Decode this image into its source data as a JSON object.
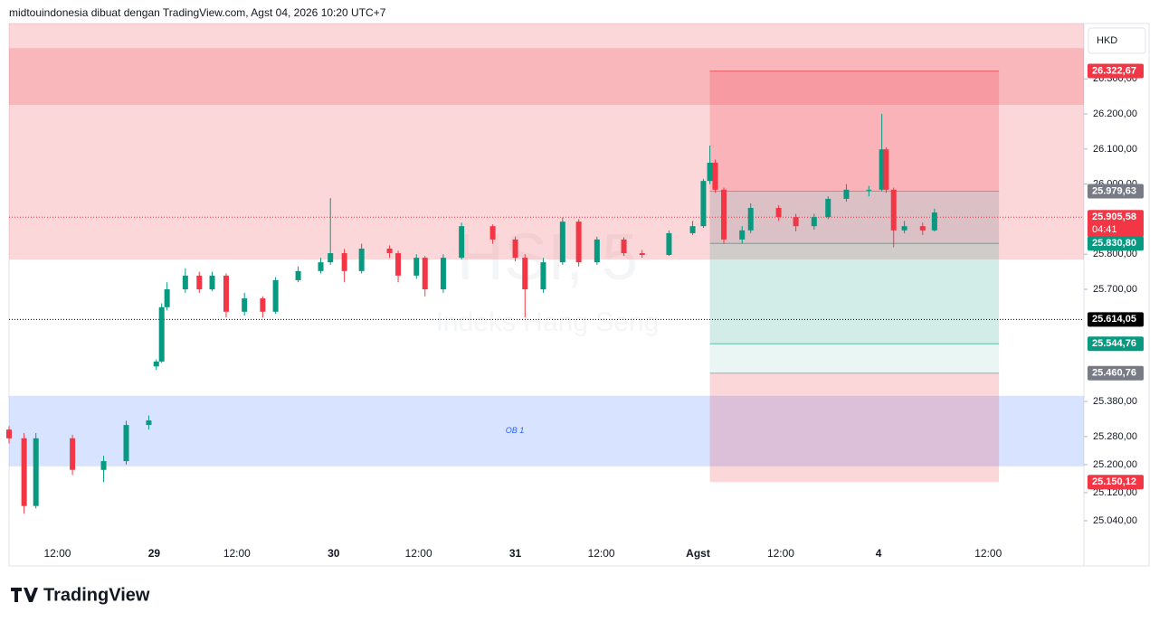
{
  "header": "midtouindonesia dibuat dengan TradingView.com, Agst 04, 2026 10:20 UTC+7",
  "footer": "TradingView",
  "chart_data": {
    "type": "candlestick",
    "currency": "HKD",
    "watermark": "HSI, 5",
    "watermark_subtitle": "Indeks Hang Seng",
    "up_color": "#089981",
    "down_color": "#f23645",
    "ylim": [
      24911,
      26458
    ],
    "xlim": [
      0,
      100
    ],
    "yticks": [
      {
        "value": 26300,
        "label": "26.300,00"
      },
      {
        "value": 26200,
        "label": "26.200,00"
      },
      {
        "value": 26100,
        "label": "26.100,00"
      },
      {
        "value": 26000,
        "label": "26.000,00"
      },
      {
        "value": 25800,
        "label": "25.800,00"
      },
      {
        "value": 25700,
        "label": "25.700,00"
      },
      {
        "value": 25380,
        "label": "25.380,00"
      },
      {
        "value": 25280,
        "label": "25.280,00"
      },
      {
        "value": 25200,
        "label": "25.200,00"
      },
      {
        "value": 25120,
        "label": "25.120,00"
      },
      {
        "value": 25040,
        "label": "25.040,00"
      }
    ],
    "xticks": [
      {
        "value": 4.5,
        "label": "12:00"
      },
      {
        "value": 13.5,
        "label": "29"
      },
      {
        "value": 21.2,
        "label": "12:00"
      },
      {
        "value": 30.2,
        "label": "30"
      },
      {
        "value": 38.1,
        "label": "12:00"
      },
      {
        "value": 47.1,
        "label": "31"
      },
      {
        "value": 55.1,
        "label": "12:00"
      },
      {
        "value": 64.1,
        "label": "Agst"
      },
      {
        "value": 71.8,
        "label": "12:00"
      },
      {
        "value": 80.9,
        "label": "4"
      },
      {
        "value": 91.1,
        "label": "12:00"
      }
    ],
    "zones": [
      {
        "ylim": [
          25785,
          26458
        ],
        "color": "rgba(242,54,69,0.2)"
      },
      {
        "ylim": [
          26226,
          26388
        ],
        "color": "rgba(242,54,69,0.2)"
      },
      {
        "ylim": [
          25195,
          25396
        ],
        "color": "rgba(41,98,255,0.18)",
        "label": "OB 1"
      }
    ],
    "position_tool_x": [
      65.2,
      92.1
    ],
    "price_labels": [
      {
        "value": 26322.67,
        "label": "26.322,67",
        "color": "#f23645",
        "band": "rgba(242,54,69,0.22)"
      },
      {
        "value": 25979.63,
        "label": "25.979,63",
        "color": "#787b86",
        "band": "rgba(120,123,134,0.25)"
      },
      {
        "value": 25905.58,
        "label": "25.905,58",
        "color": "#f23645",
        "countdown": "04:41"
      },
      {
        "value": 25830.8,
        "label": "25.830,80",
        "color": "#089981",
        "band": "rgba(8,153,129,0.18)"
      },
      {
        "value": 25614.05,
        "label": "25.614,05",
        "color": "#000000"
      },
      {
        "value": 25544.76,
        "label": "25.544,76",
        "color": "#089981",
        "band": "rgba(8,153,129,0.09)"
      },
      {
        "value": 25460.76,
        "label": "25.460,76",
        "color": "#787b86",
        "band": "rgba(242,54,69,0.2)"
      },
      {
        "value": 25150.12,
        "label": "25.150,12",
        "color": "#f23645"
      }
    ],
    "x": [
      0,
      1.4,
      2.5,
      5.9,
      8.8,
      10.9,
      13,
      13.7,
      14.2,
      14.7,
      16.4,
      17.7,
      18.9,
      20.2,
      21.9,
      23.6,
      24.8,
      26.9,
      29,
      29.9,
      31.2,
      32.8,
      35.4,
      36.2,
      37.9,
      38.7,
      40.4,
      42.1,
      45,
      47.1,
      48,
      49.7,
      51.5,
      53,
      54.7,
      57.2,
      58.9,
      61.4,
      63.6,
      64.6,
      65.2,
      65.7,
      66.5,
      68.2,
      69,
      71.6,
      73.2,
      74.9,
      76.2,
      77.9,
      80,
      81.2,
      81.6,
      82.3,
      83.3,
      85,
      86.1
    ],
    "ohlc": [
      [
        25300,
        25310,
        25260,
        25275
      ],
      [
        25275,
        25290,
        25060,
        25082
      ],
      [
        25082,
        25290,
        25075,
        25275
      ],
      [
        25275,
        25285,
        25170,
        25185
      ],
      [
        25185,
        25225,
        25150,
        25210
      ],
      [
        25210,
        25325,
        25200,
        25313
      ],
      [
        25313,
        25340,
        25300,
        25326
      ],
      [
        25480,
        25500,
        25470,
        25494
      ],
      [
        25494,
        25660,
        25490,
        25649
      ],
      [
        25649,
        25720,
        25640,
        25700
      ],
      [
        25700,
        25760,
        25690,
        25739
      ],
      [
        25739,
        25750,
        25690,
        25700
      ],
      [
        25700,
        25750,
        25695,
        25739
      ],
      [
        25739,
        25745,
        25620,
        25636
      ],
      [
        25636,
        25690,
        25625,
        25674
      ],
      [
        25674,
        25680,
        25620,
        25636
      ],
      [
        25636,
        25735,
        25630,
        25726
      ],
      [
        25726,
        25765,
        25720,
        25752
      ],
      [
        25752,
        25790,
        25745,
        25777
      ],
      [
        25777,
        25960,
        25770,
        25803
      ],
      [
        25803,
        25815,
        25720,
        25752
      ],
      [
        25752,
        25830,
        25745,
        25816
      ],
      [
        25816,
        25825,
        25790,
        25803
      ],
      [
        25803,
        25810,
        25720,
        25739
      ],
      [
        25739,
        25800,
        25730,
        25790
      ],
      [
        25790,
        25795,
        25680,
        25700
      ],
      [
        25700,
        25800,
        25690,
        25790
      ],
      [
        25790,
        25890,
        25785,
        25880
      ],
      [
        25880,
        25885,
        25830,
        25842
      ],
      [
        25842,
        25850,
        25780,
        25790
      ],
      [
        25790,
        25800,
        25620,
        25700
      ],
      [
        25700,
        25790,
        25690,
        25777
      ],
      [
        25777,
        25905,
        25770,
        25893
      ],
      [
        25893,
        25900,
        25765,
        25777
      ],
      [
        25777,
        25850,
        25770,
        25842
      ],
      [
        25842,
        25848,
        25795,
        25803
      ],
      [
        25803,
        25812,
        25790,
        25798
      ],
      [
        25798,
        25868,
        25795,
        25860
      ],
      [
        25860,
        25895,
        25855,
        25880
      ],
      [
        25880,
        26015,
        25875,
        26009
      ],
      [
        26009,
        26110,
        26000,
        26061
      ],
      [
        26061,
        26070,
        25975,
        25984
      ],
      [
        25984,
        25990,
        25830,
        25842
      ],
      [
        25842,
        25880,
        25830,
        25868
      ],
      [
        25868,
        25945,
        25860,
        25932
      ],
      [
        25932,
        25940,
        25895,
        25906
      ],
      [
        25906,
        25915,
        25865,
        25880
      ],
      [
        25880,
        25915,
        25870,
        25906
      ],
      [
        25906,
        25965,
        25900,
        25958
      ],
      [
        25958,
        26000,
        25950,
        25984
      ],
      [
        25984,
        25995,
        25965,
        25984
      ],
      [
        25984,
        26200,
        25980,
        26099
      ],
      [
        26099,
        26105,
        25975,
        25984
      ],
      [
        25984,
        25990,
        25820,
        25868
      ],
      [
        25868,
        25895,
        25860,
        25880
      ],
      [
        25880,
        25890,
        25855,
        25868
      ],
      [
        25868,
        25930,
        25865,
        25919
      ]
    ]
  }
}
